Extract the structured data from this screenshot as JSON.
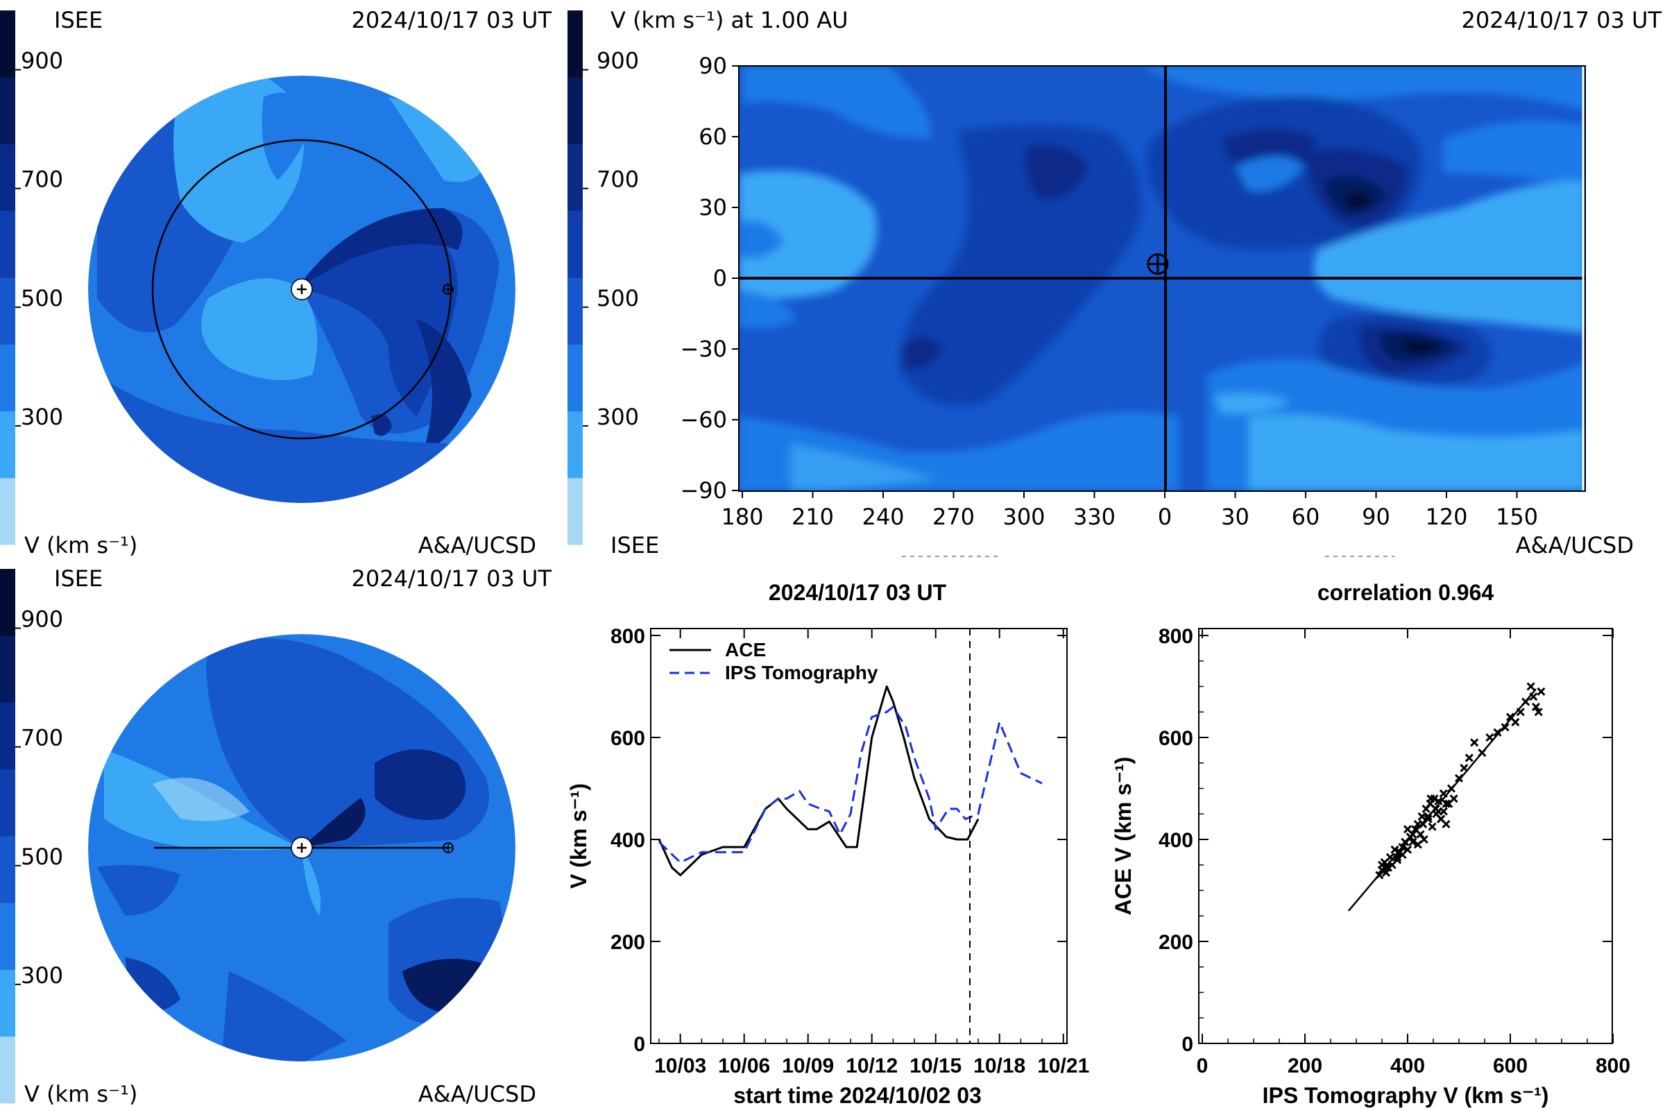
{
  "colorscale": {
    "colors": [
      "#a6d8f5",
      "#3ba8f6",
      "#1f7ae6",
      "#1657cc",
      "#0f3fae",
      "#0a2a8a",
      "#061a5e",
      "#030d33"
    ],
    "ticks": [
      300,
      500,
      700,
      900
    ]
  },
  "panel_top_left": {
    "left_label": "ISEE",
    "timestamp": "2024/10/17 03 UT",
    "unit_label": "V (km s⁻¹)",
    "credit": "A&A/UCSD"
  },
  "panel_bottom_left": {
    "left_label": "ISEE",
    "timestamp": "2024/10/17 03 UT",
    "unit_label": "V (km s⁻¹)",
    "credit": "A&A/UCSD"
  },
  "panel_top_right": {
    "title": "V (km s⁻¹) at 1.00 AU",
    "timestamp": "2024/10/17 03 UT",
    "left_label": "ISEE",
    "credit": "A&A/UCSD"
  },
  "chart_data": [
    {
      "type": "heatmap",
      "title": "V (km s⁻¹) at 1.00 AU",
      "xticks": [
        "180",
        "210",
        "240",
        "270",
        "300",
        "330",
        "0",
        "30",
        "60",
        "90",
        "120",
        "150"
      ],
      "yticks": [
        "90",
        "60",
        "30",
        "0",
        "−30",
        "−60",
        "−90"
      ],
      "ylim": [
        -90,
        90
      ],
      "earth_marker": {
        "lon": 357,
        "lat": 6
      }
    },
    {
      "type": "line",
      "title": "2024/10/17 03 UT",
      "xlabel": "start time 2024/10/02 03",
      "ylabel": "V (km s⁻¹)",
      "ylim": [
        0,
        800
      ],
      "yticks": [
        0,
        200,
        400,
        600,
        800
      ],
      "xticks": [
        "10/03",
        "10/06",
        "10/09",
        "10/12",
        "10/15",
        "10/18",
        "10/21"
      ],
      "now_marker_day": 15,
      "series": [
        {
          "name": "ACE",
          "x": [
            0,
            0.6,
            1,
            2,
            3,
            4,
            5,
            5.6,
            6,
            7,
            7.4,
            8,
            8.8,
            9.3,
            10,
            10.7,
            11,
            11.5,
            12,
            12.7,
            13.5,
            14,
            14.5,
            15
          ],
          "values": [
            400,
            345,
            330,
            370,
            385,
            385,
            460,
            480,
            460,
            420,
            420,
            435,
            385,
            385,
            600,
            700,
            670,
            600,
            520,
            440,
            405,
            400,
            400,
            440
          ]
        },
        {
          "name": "IPS Tomography",
          "x": [
            0,
            1,
            2,
            3,
            4,
            5,
            5.6,
            6,
            6.6,
            7,
            7.6,
            8,
            8.5,
            9,
            9.5,
            10,
            10.7,
            11,
            11.6,
            12,
            12.7,
            13,
            13.6,
            14,
            14.4,
            15,
            15,
            16,
            17,
            18
          ],
          "values": [
            395,
            355,
            375,
            375,
            375,
            460,
            480,
            480,
            495,
            470,
            460,
            455,
            410,
            450,
            570,
            640,
            650,
            660,
            620,
            560,
            480,
            420,
            460,
            460,
            440,
            450,
            450,
            630,
            530,
            510
          ]
        }
      ]
    },
    {
      "type": "scatter",
      "title": "correlation 0.964",
      "xlabel": "IPS Tomography V (km s⁻¹)",
      "ylabel": "ACE V (km s⁻¹)",
      "xlim": [
        0,
        800
      ],
      "ylim": [
        0,
        800
      ],
      "xticks": [
        0,
        200,
        400,
        600,
        800
      ],
      "yticks": [
        0,
        200,
        400,
        600,
        800
      ],
      "fit_line": {
        "x": [
          285,
          650
        ],
        "values": [
          260,
          695
        ]
      },
      "points": {
        "x": [
          345,
          350,
          355,
          358,
          362,
          366,
          370,
          375,
          380,
          385,
          390,
          395,
          400,
          405,
          410,
          415,
          420,
          425,
          428,
          432,
          436,
          440,
          444,
          448,
          452,
          456,
          460,
          465,
          470,
          475,
          480,
          485,
          490,
          500,
          510,
          520,
          530,
          545,
          560,
          575,
          590,
          600,
          610,
          620,
          630,
          640,
          645,
          650,
          655,
          660,
          430,
          445,
          455,
          465,
          475,
          420,
          410,
          400,
          390,
          380,
          440,
          460,
          470,
          480,
          350,
          360
        ],
        "values": [
          330,
          340,
          355,
          335,
          345,
          365,
          350,
          380,
          360,
          375,
          385,
          395,
          380,
          405,
          395,
          420,
          430,
          410,
          445,
          400,
          460,
          440,
          470,
          425,
          480,
          450,
          475,
          440,
          455,
          430,
          470,
          500,
          480,
          520,
          540,
          560,
          590,
          570,
          600,
          610,
          620,
          640,
          630,
          650,
          670,
          700,
          680,
          660,
          650,
          690,
          430,
          480,
          460,
          440,
          470,
          390,
          410,
          420,
          370,
          365,
          445,
          455,
          490,
          470,
          350,
          345
        ]
      }
    }
  ]
}
